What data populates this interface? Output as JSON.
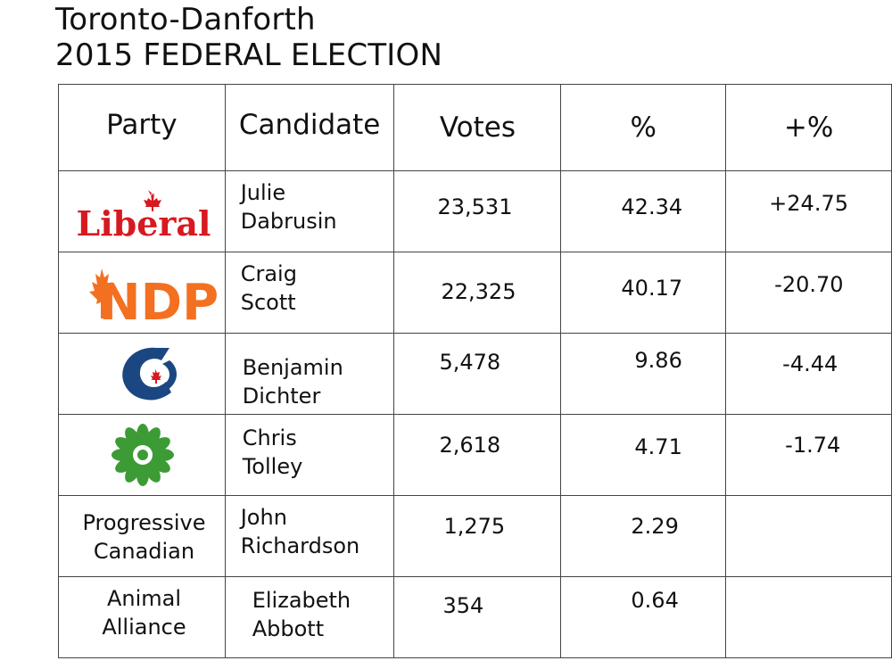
{
  "header": {
    "line1": "Toronto-Danforth",
    "line2": "2015 FEDERAL ELECTION"
  },
  "table": {
    "columns": [
      "Party",
      "Candidate",
      "Votes",
      "%",
      "+%"
    ],
    "rows": [
      {
        "party": "Liberal",
        "party_logo": "liberal-logo",
        "candidate_line1": "Julie",
        "candidate_line2": "Dabrusin",
        "votes": "23,531",
        "percent": "42.34",
        "change": "+24.75"
      },
      {
        "party": "NDP",
        "party_logo": "ndp-logo",
        "candidate_line1": "Craig",
        "candidate_line2": "Scott",
        "votes": "22,325",
        "percent": "40.17",
        "change": "-20.70"
      },
      {
        "party": "",
        "party_logo": "conservative-logo",
        "candidate_line1": "Benjamin",
        "candidate_line2": "Dichter",
        "votes": "5,478",
        "percent": "9.86",
        "change": "-4.44"
      },
      {
        "party": "",
        "party_logo": "green-logo",
        "candidate_line1": "Chris",
        "candidate_line2": "Tolley",
        "votes": "2,618",
        "percent": "4.71",
        "change": "-1.74"
      },
      {
        "party_line1": "Progressive",
        "party_line2": "Canadian",
        "candidate_line1": "John",
        "candidate_line2": "Richardson",
        "votes": "1,275",
        "percent": "2.29",
        "change": ""
      },
      {
        "party_line1": "Animal",
        "party_line2": "Alliance",
        "candidate_line1": "Elizabeth",
        "candidate_line2": "Abbott",
        "votes": "354",
        "percent": "0.64",
        "change": ""
      }
    ]
  },
  "colors": {
    "liberal_red": "#d71920",
    "ndp_orange": "#f37021",
    "conservative_blue": "#1a4782",
    "green_party": "#3d9b35"
  }
}
